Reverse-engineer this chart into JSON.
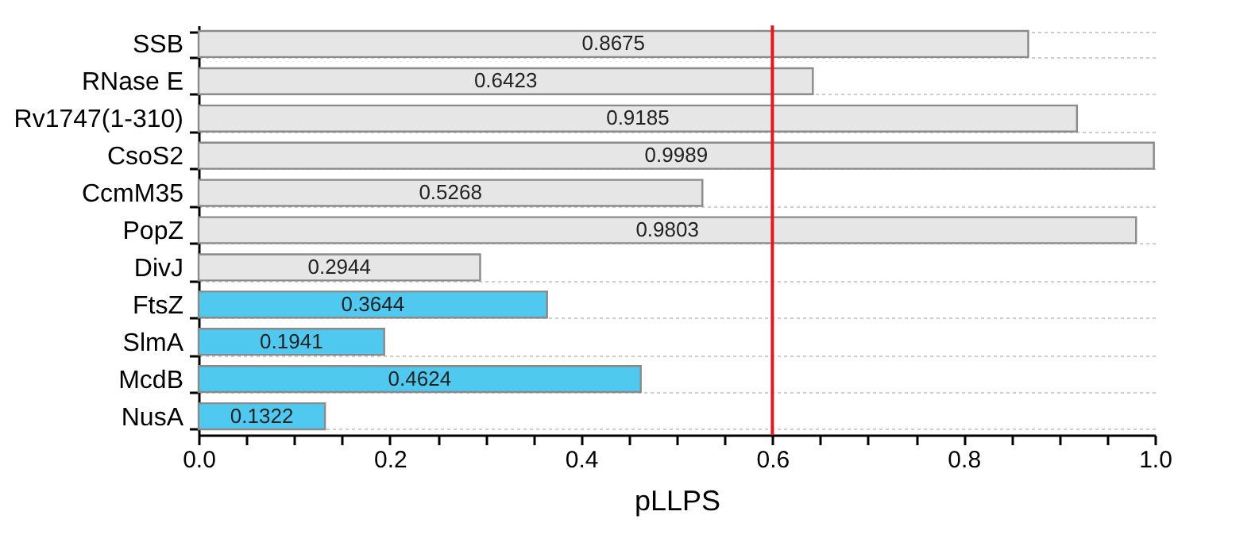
{
  "chart_data": {
    "type": "bar",
    "orientation": "horizontal",
    "xlabel": "pLLPS",
    "categories": [
      "SSB",
      "RNase E",
      "Rv1747(1-310)",
      "CsoS2",
      "CcmM35",
      "PopZ",
      "DivJ",
      "FtsZ",
      "SlmA",
      "McdB",
      "NusA"
    ],
    "values": [
      0.8675,
      0.6423,
      0.9185,
      0.9989,
      0.5268,
      0.9803,
      0.2944,
      0.3644,
      0.1941,
      0.4624,
      0.1322
    ],
    "colors": [
      "#e6e6e6",
      "#e6e6e6",
      "#e6e6e6",
      "#e6e6e6",
      "#e6e6e6",
      "#e6e6e6",
      "#e6e6e6",
      "#4fc9ef",
      "#4fc9ef",
      "#4fc9ef",
      "#4fc9ef"
    ],
    "data_labels": true,
    "xlim": [
      0,
      1
    ],
    "xticks": [
      {
        "value": 0,
        "label": "0.0"
      },
      {
        "value": 0.05,
        "label": null
      },
      {
        "value": 0.1,
        "label": null
      },
      {
        "value": 0.15,
        "label": null
      },
      {
        "value": 0.2,
        "label": "0.2"
      },
      {
        "value": 0.25,
        "label": null
      },
      {
        "value": 0.3,
        "label": null
      },
      {
        "value": 0.35,
        "label": null
      },
      {
        "value": 0.4,
        "label": "0.4"
      },
      {
        "value": 0.45,
        "label": null
      },
      {
        "value": 0.5,
        "label": null
      },
      {
        "value": 0.55,
        "label": null
      },
      {
        "value": 0.6,
        "label": "0.6"
      },
      {
        "value": 0.65,
        "label": null
      },
      {
        "value": 0.7,
        "label": null
      },
      {
        "value": 0.75,
        "label": null
      },
      {
        "value": 0.8,
        "label": "0.8"
      },
      {
        "value": 0.85,
        "label": null
      },
      {
        "value": 0.9,
        "label": null
      },
      {
        "value": 0.95,
        "label": null
      },
      {
        "value": 1,
        "label": "1.0"
      }
    ],
    "grid": "y",
    "ref_lines": [
      {
        "axis": "x",
        "value": 0.6,
        "color": "#e8161b"
      }
    ]
  }
}
